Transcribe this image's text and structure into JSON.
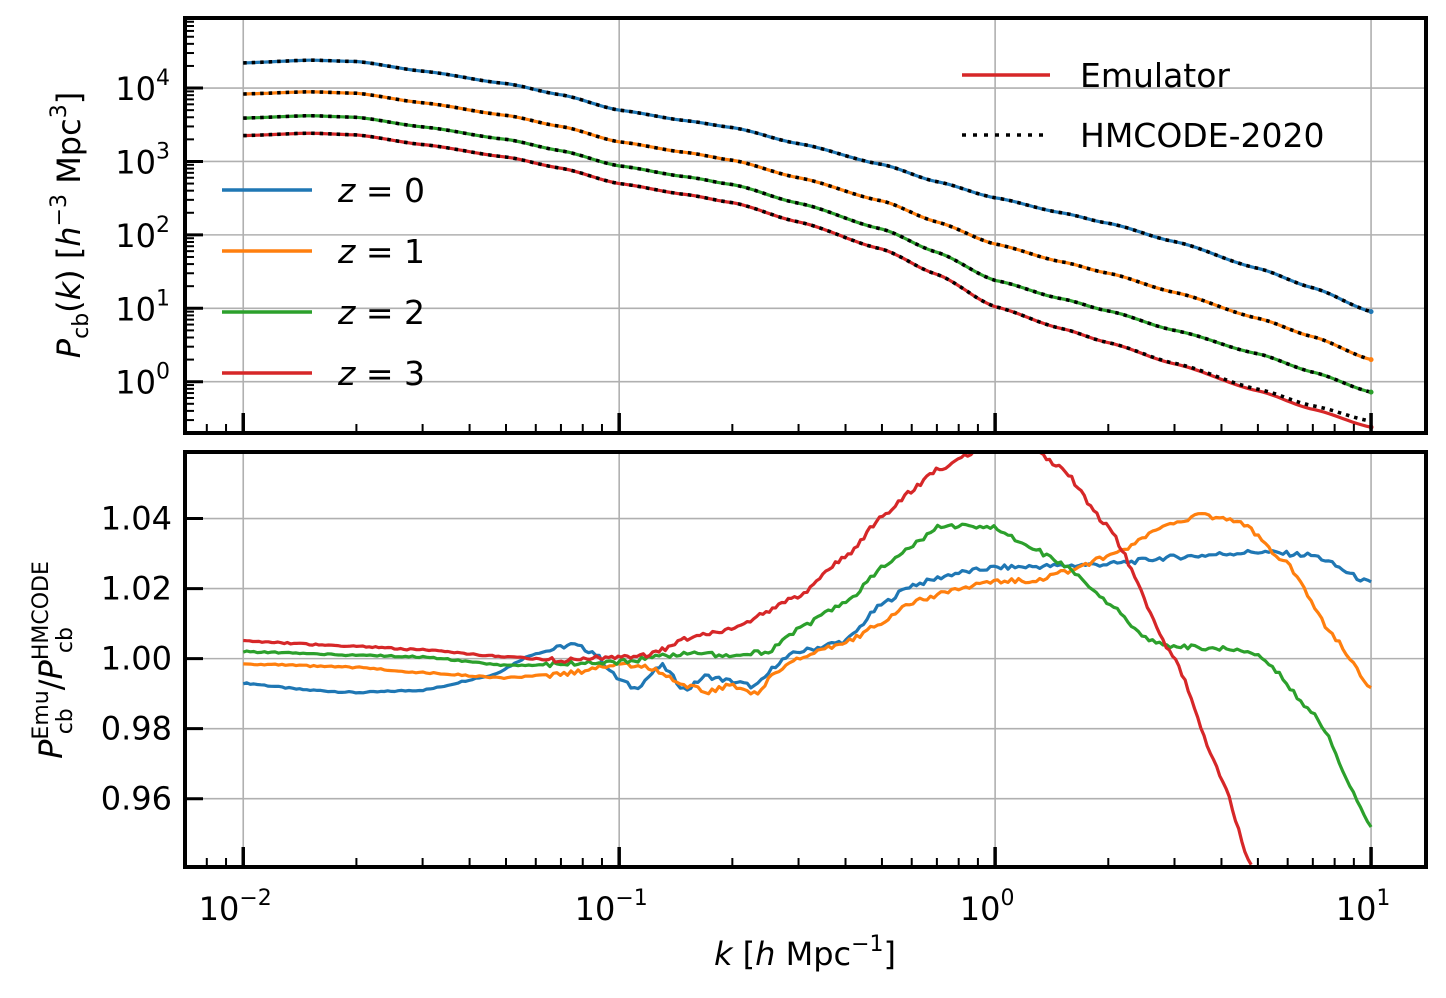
{
  "chart_data": [
    {
      "type": "line",
      "panel": "top",
      "ylabel": "P_cb(k) [h^-3 Mpc^3]",
      "xscale": "log",
      "yscale": "log",
      "xlim": [
        0.007,
        14
      ],
      "ylim": [
        0.2,
        90000
      ],
      "x_ticks": [
        {
          "value": 0.01,
          "mantissa": "10",
          "exp": "−2"
        },
        {
          "value": 0.1,
          "mantissa": "10",
          "exp": "−1"
        },
        {
          "value": 1,
          "mantissa": "10",
          "exp": "0"
        },
        {
          "value": 10,
          "mantissa": "10",
          "exp": "1"
        }
      ],
      "y_ticks": [
        {
          "value": 1,
          "mantissa": "10",
          "exp": "0"
        },
        {
          "value": 10,
          "mantissa": "10",
          "exp": "1"
        },
        {
          "value": 100,
          "mantissa": "10",
          "exp": "2"
        },
        {
          "value": 1000,
          "mantissa": "10",
          "exp": "3"
        },
        {
          "value": 10000,
          "mantissa": "10",
          "exp": "4"
        }
      ],
      "grid": true,
      "legends": [
        {
          "placement": "middle-left",
          "entries": [
            {
              "label": "z = 0",
              "color": "#1f77b4",
              "style": "solid"
            },
            {
              "label": "z = 1",
              "color": "#ff7f0e",
              "style": "solid"
            },
            {
              "label": "z = 2",
              "color": "#2ca02c",
              "style": "solid"
            },
            {
              "label": "z = 3",
              "color": "#d62728",
              "style": "solid"
            }
          ]
        },
        {
          "placement": "upper-right",
          "entries": [
            {
              "label": "Emulator",
              "color": "#d62728",
              "style": "solid"
            },
            {
              "label": "HMCODE-2020",
              "color": "#000000",
              "style": "dotted"
            }
          ]
        }
      ],
      "x": [
        0.01,
        0.015,
        0.02,
        0.03,
        0.05,
        0.07,
        0.1,
        0.15,
        0.2,
        0.3,
        0.5,
        0.7,
        1,
        1.5,
        2,
        3,
        5,
        7,
        10
      ],
      "series": [
        {
          "name": "z = 0",
          "color": "#1f77b4",
          "values": [
            22000,
            24000,
            23000,
            17000,
            11500,
            8100,
            5000,
            3600,
            2900,
            1750,
            910,
            530,
            320,
            200,
            144,
            81,
            35,
            19,
            9
          ]
        },
        {
          "name": "z = 1",
          "color": "#ff7f0e",
          "values": [
            8300,
            8900,
            8500,
            6300,
            4250,
            3000,
            1850,
            1330,
            1040,
            600,
            290,
            150,
            75,
            43,
            30,
            16.5,
            7.3,
            4.1,
            2.0
          ]
        },
        {
          "name": "z = 2",
          "color": "#2ca02c",
          "values": [
            3900,
            4200,
            4000,
            2960,
            2000,
            1400,
            870,
            620,
            485,
            270,
            120,
            58,
            24,
            13.5,
            9.2,
            5.0,
            2.4,
            1.35,
            0.72
          ]
        },
        {
          "name": "z = 3",
          "color": "#d62728",
          "values": [
            2250,
            2430,
            2300,
            1700,
            1150,
            810,
            500,
            355,
            275,
            150,
            64,
            29,
            10.5,
            5.3,
            3.4,
            1.75,
            0.75,
            0.42,
            0.24
          ]
        }
      ],
      "hmcode_z3_tail": {
        "x": [
          2,
          3,
          5,
          7,
          10
        ],
        "values": [
          3.4,
          1.78,
          0.79,
          0.47,
          0.29
        ]
      }
    },
    {
      "type": "line",
      "panel": "bottom",
      "xlabel": "k [h Mpc^-1]",
      "ylabel": "P_cb^Emu / P_cb^HMCODE",
      "xscale": "log",
      "xlim": [
        0.007,
        14
      ],
      "ylim": [
        0.9405,
        1.059
      ],
      "x_ticks": [
        {
          "value": 0.01,
          "mantissa": "10",
          "exp": "−2"
        },
        {
          "value": 0.1,
          "mantissa": "10",
          "exp": "−1"
        },
        {
          "value": 1,
          "mantissa": "10",
          "exp": "0"
        },
        {
          "value": 10,
          "mantissa": "10",
          "exp": "1"
        }
      ],
      "y_ticks": [
        {
          "value": 0.96,
          "label": "0.96"
        },
        {
          "value": 0.98,
          "label": "0.98"
        },
        {
          "value": 1.0,
          "label": "1.00"
        },
        {
          "value": 1.02,
          "label": "1.02"
        },
        {
          "value": 1.04,
          "label": "1.04"
        }
      ],
      "grid": true,
      "series": [
        {
          "name": "z = 0",
          "color": "#1f77b4",
          "x": [
            0.01,
            0.015,
            0.02,
            0.03,
            0.045,
            0.06,
            0.075,
            0.085,
            0.1,
            0.11,
            0.13,
            0.15,
            0.17,
            0.2,
            0.23,
            0.27,
            0.3,
            0.4,
            0.5,
            0.6,
            0.8,
            1,
            1.5,
            2,
            3,
            5,
            7,
            10
          ],
          "values": [
            0.993,
            0.991,
            0.9903,
            0.991,
            0.995,
            1.0015,
            1.004,
            1.002,
            0.994,
            0.9915,
            0.998,
            0.991,
            0.995,
            0.9935,
            0.992,
            0.9995,
            1.002,
            1.005,
            1.0155,
            1.021,
            1.0245,
            1.026,
            1.0265,
            1.027,
            1.029,
            1.0305,
            1.0295,
            1.0215
          ]
        },
        {
          "name": "z = 1",
          "color": "#ff7f0e",
          "x": [
            0.01,
            0.02,
            0.03,
            0.05,
            0.07,
            0.1,
            0.12,
            0.15,
            0.17,
            0.2,
            0.23,
            0.27,
            0.3,
            0.4,
            0.5,
            0.6,
            0.8,
            1,
            1.3,
            1.5,
            2,
            3,
            3.5,
            4.5,
            6,
            8,
            10
          ],
          "values": [
            0.9985,
            0.9975,
            0.996,
            0.9945,
            0.9955,
            0.9985,
            0.9975,
            0.9925,
            0.9905,
            0.9925,
            0.99,
            0.9975,
            1.0,
            1.0045,
            1.0105,
            1.016,
            1.02,
            1.022,
            1.0225,
            1.0245,
            1.029,
            1.039,
            1.041,
            1.039,
            1.027,
            1.006,
            0.9915
          ]
        },
        {
          "name": "z = 2",
          "color": "#2ca02c",
          "x": [
            0.01,
            0.02,
            0.03,
            0.05,
            0.07,
            0.1,
            0.15,
            0.2,
            0.25,
            0.3,
            0.4,
            0.5,
            0.6,
            0.7,
            0.8,
            1,
            1.2,
            1.5,
            2,
            2.5,
            3,
            4,
            5,
            7,
            10
          ],
          "values": [
            1.002,
            1.001,
            1.0005,
            0.998,
            0.9985,
            0.999,
            1.0015,
            1.001,
            1.002,
            1.0085,
            1.016,
            1.026,
            1.032,
            1.0375,
            1.038,
            1.0375,
            1.033,
            1.027,
            1.016,
            1.006,
            1.0035,
            1.003,
            1.0015,
            0.985,
            0.9525
          ]
        },
        {
          "name": "z = 3",
          "color": "#d62728",
          "x": [
            0.01,
            0.02,
            0.03,
            0.05,
            0.07,
            0.1,
            0.12,
            0.15,
            0.2,
            0.3,
            0.4,
            0.5,
            0.6,
            0.7,
            0.85,
            1,
            1.2,
            1.5,
            2,
            3,
            4,
            4.8
          ],
          "values": [
            1.005,
            1.0035,
            1.0025,
            1.0005,
            0.9995,
            1.0005,
            1.001,
            1.0055,
            1.0085,
            1.018,
            1.029,
            1.0405,
            1.048,
            1.054,
            1.058,
            1.062,
            1.062,
            1.0545,
            1.0375,
            1.0,
            0.966,
            0.9405
          ]
        }
      ]
    }
  ]
}
